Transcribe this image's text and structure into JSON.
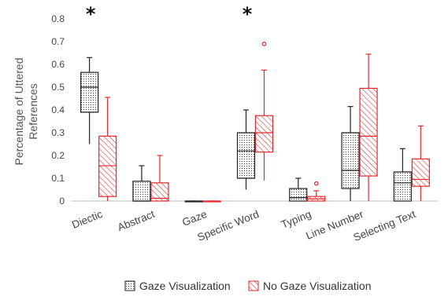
{
  "chart_data": {
    "type": "boxplot",
    "ylabel_lines": [
      "Percentage of Uttered",
      "References"
    ],
    "ylim": [
      0,
      0.8
    ],
    "yticks": [
      "0",
      "0.1",
      "0.2",
      "0.3",
      "0.4",
      "0.5",
      "0.6",
      "0.7",
      "0.8"
    ],
    "ytick_values": [
      0,
      0.1,
      0.2,
      0.3,
      0.4,
      0.5,
      0.6,
      0.7,
      0.8
    ],
    "grid": false,
    "legend_position": "bottom",
    "categories": [
      "Diectic",
      "Abstract",
      "Gaze",
      "Specific Word",
      "Typing",
      "Line Number",
      "Selecting Text"
    ],
    "significance": [
      "*",
      "",
      "",
      "*",
      "",
      "",
      ""
    ],
    "series": [
      {
        "name": "Gaze Visualization",
        "color": "#222222",
        "pattern": "dots",
        "boxes": [
          {
            "min": 0.25,
            "q1": 0.39,
            "median": 0.5,
            "q3": 0.565,
            "max": 0.63,
            "outliers": []
          },
          {
            "min": 0.0,
            "q1": 0.0,
            "median": 0.0,
            "q3": 0.087,
            "max": 0.155,
            "outliers": []
          },
          {
            "min": 0.0,
            "q1": 0.0,
            "median": 0.0,
            "q3": 0.0,
            "max": 0.0,
            "outliers": []
          },
          {
            "min": 0.05,
            "q1": 0.1,
            "median": 0.22,
            "q3": 0.3,
            "max": 0.4,
            "outliers": []
          },
          {
            "min": 0.0,
            "q1": 0.0,
            "median": 0.015,
            "q3": 0.055,
            "max": 0.1,
            "outliers": []
          },
          {
            "min": 0.0,
            "q1": 0.055,
            "median": 0.135,
            "q3": 0.3,
            "max": 0.415,
            "outliers": []
          },
          {
            "min": 0.0,
            "q1": 0.0,
            "median": 0.08,
            "q3": 0.128,
            "max": 0.23,
            "outliers": []
          }
        ]
      },
      {
        "name": "No Gaze Visualization",
        "color": "#e8262a",
        "pattern": "hatch",
        "boxes": [
          {
            "min": 0.0,
            "q1": 0.02,
            "median": 0.155,
            "q3": 0.285,
            "max": 0.455,
            "outliers": []
          },
          {
            "min": 0.0,
            "q1": 0.0,
            "median": 0.012,
            "q3": 0.08,
            "max": 0.2,
            "outliers": []
          },
          {
            "min": 0.0,
            "q1": 0.0,
            "median": 0.0,
            "q3": 0.0,
            "max": 0.0,
            "outliers": []
          },
          {
            "min": 0.09,
            "q1": 0.215,
            "median": 0.3,
            "q3": 0.375,
            "max": 0.575,
            "outliers": [
              0.69
            ]
          },
          {
            "min": 0.0,
            "q1": 0.0,
            "median": 0.01,
            "q3": 0.02,
            "max": 0.045,
            "outliers": [
              0.077
            ]
          },
          {
            "min": 0.0,
            "q1": 0.11,
            "median": 0.285,
            "q3": 0.495,
            "max": 0.645,
            "outliers": []
          },
          {
            "min": 0.0,
            "q1": 0.065,
            "median": 0.095,
            "q3": 0.185,
            "max": 0.33,
            "outliers": []
          }
        ]
      }
    ]
  }
}
